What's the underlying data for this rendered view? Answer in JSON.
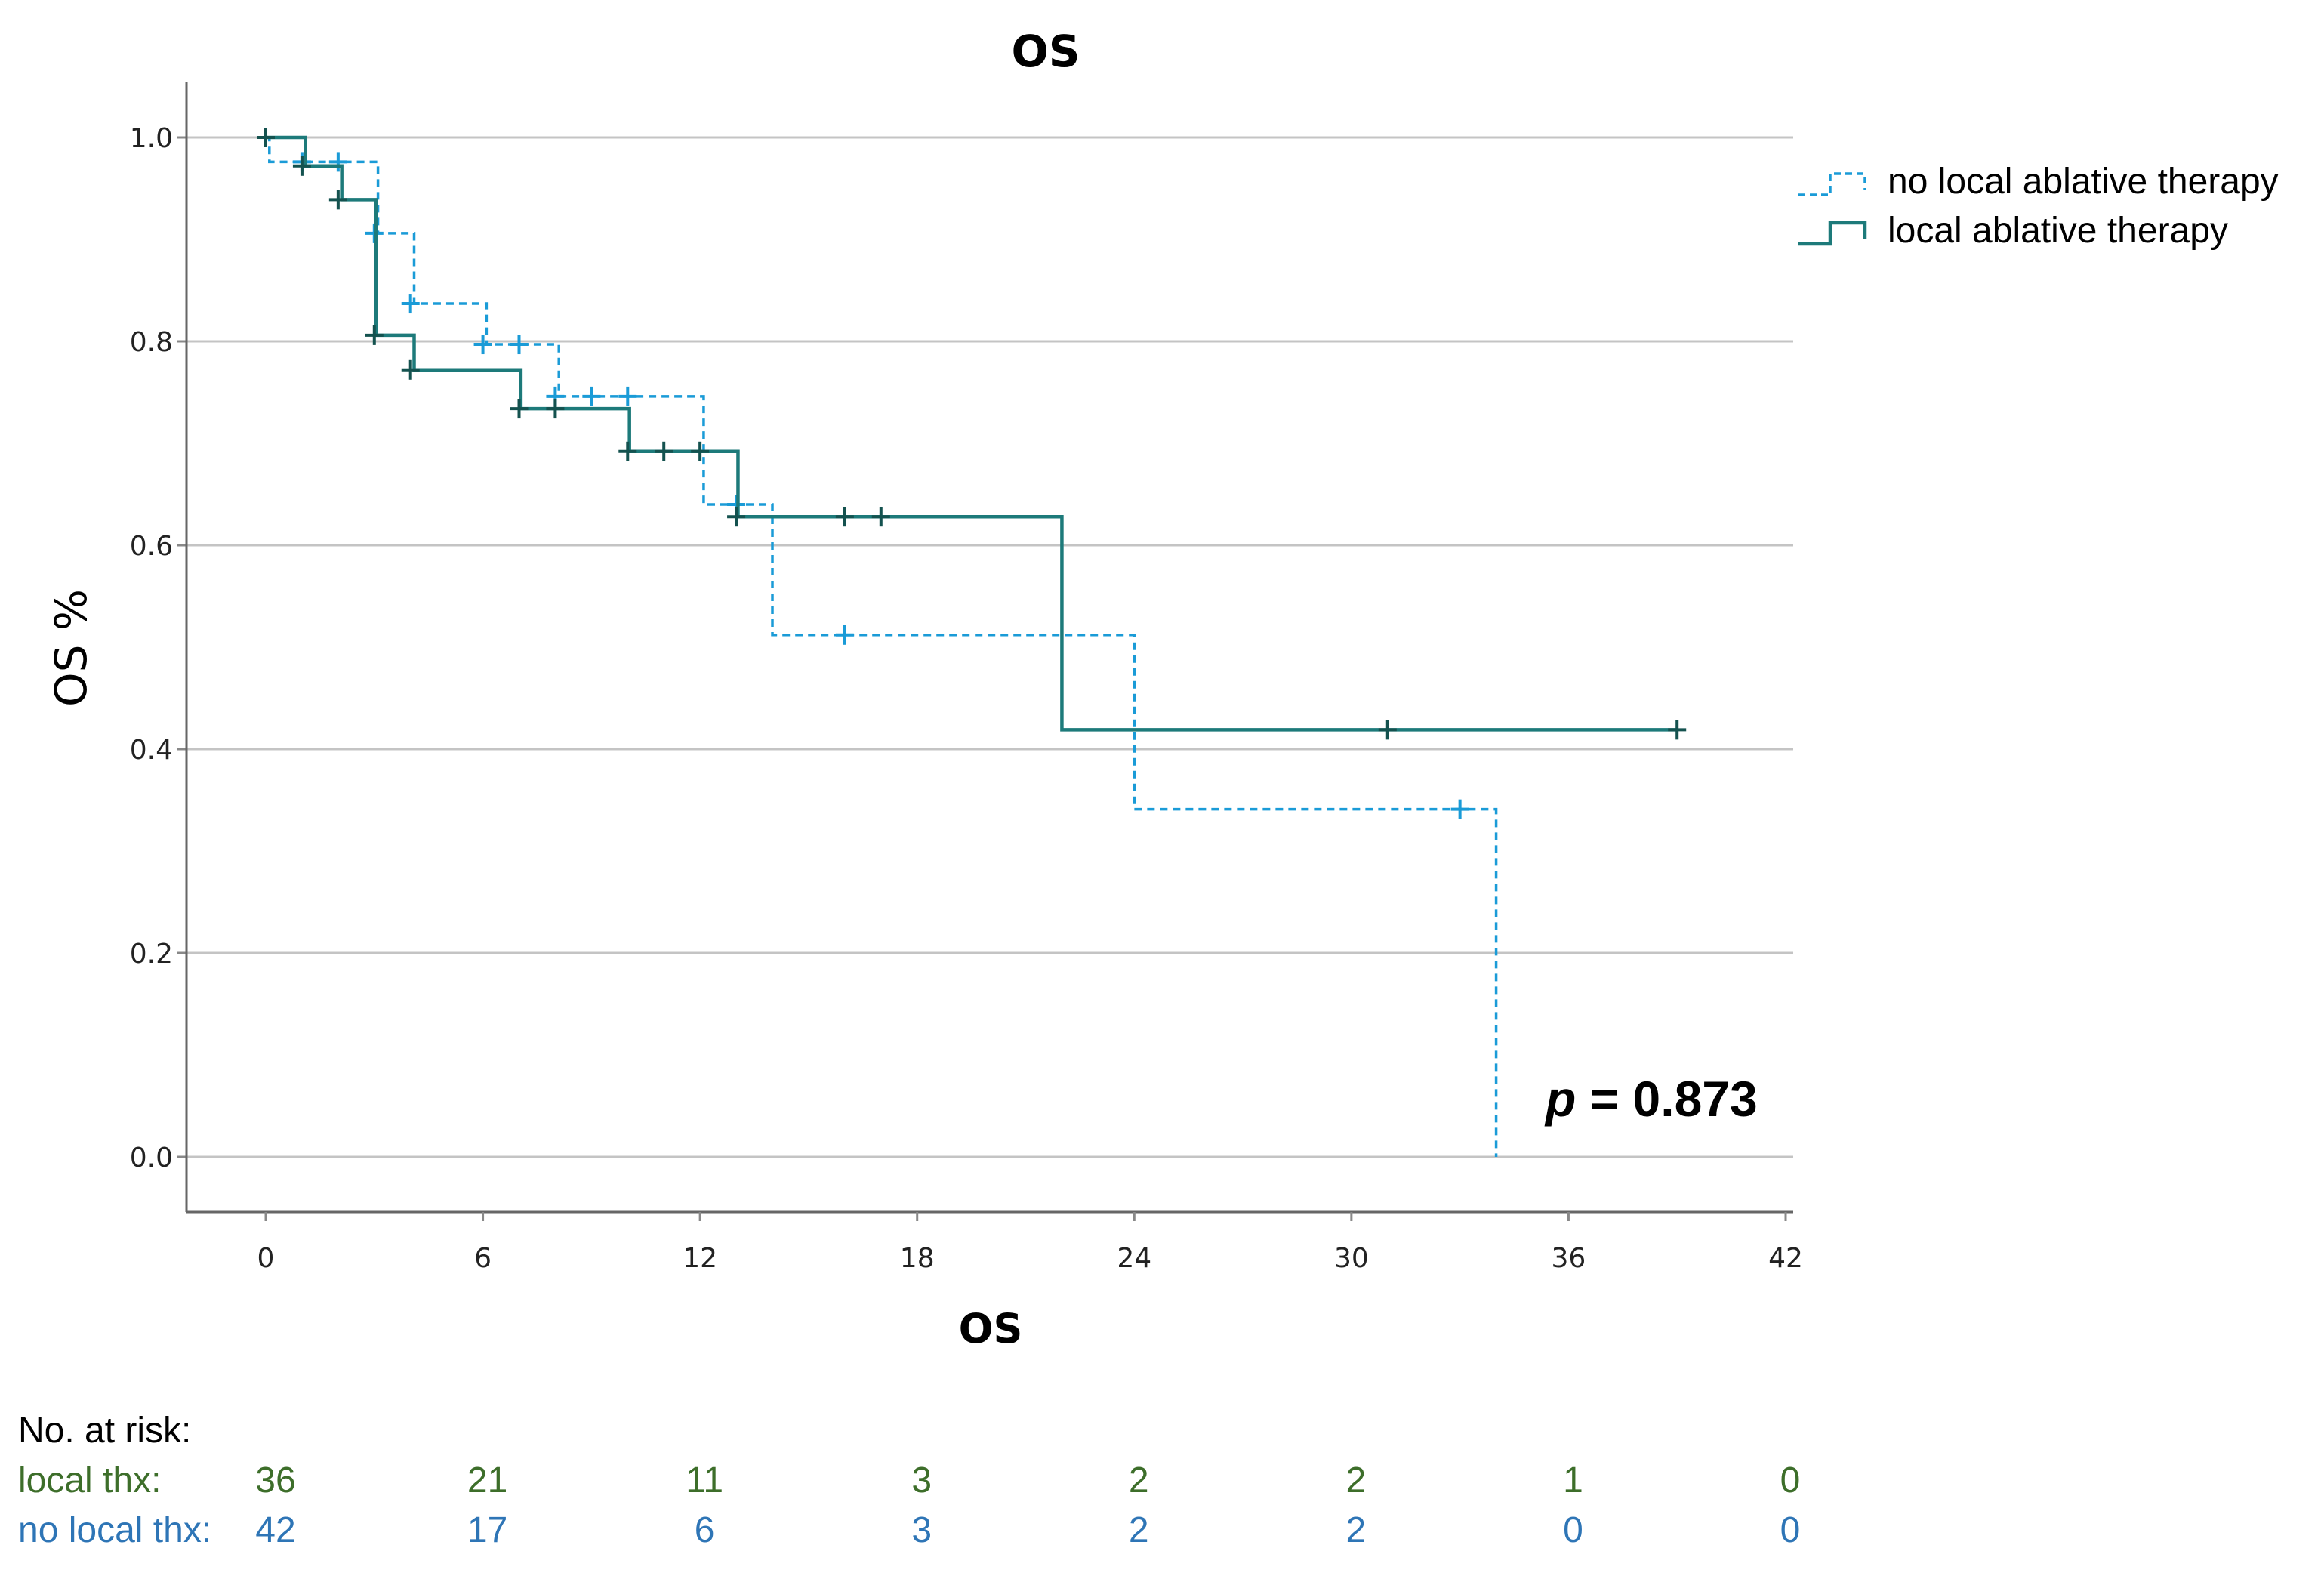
{
  "chart_data": {
    "type": "line",
    "subtype": "kaplan-meier",
    "title": "OS",
    "xlabel": "OS",
    "ylabel": "OS %",
    "xlim": [
      -4.4,
      42
    ],
    "ylim": [
      -0.055,
      1.07
    ],
    "xticks": [
      "0",
      "6",
      "12",
      "18",
      "24",
      "30",
      "36",
      "42"
    ],
    "yticks": [
      "0.0",
      "0.2",
      "0.4",
      "0.6",
      "0.8",
      "1.0"
    ],
    "grid": "horizontal",
    "legend_position": "top-right",
    "annotation": {
      "prefix": "p",
      "text": " = 0.873"
    },
    "series": [
      {
        "name": "no local ablative therapy",
        "color": "#1a9bd7",
        "style": "dashed",
        "steps": [
          [
            0,
            1.0
          ],
          [
            0.1,
            0.976
          ],
          [
            3.1,
            0.906
          ],
          [
            4.1,
            0.837
          ],
          [
            6.1,
            0.797
          ],
          [
            8.1,
            0.746
          ],
          [
            12.1,
            0.64
          ],
          [
            14.0,
            0.512
          ],
          [
            24.0,
            0.341
          ],
          [
            34.0,
            0.0
          ]
        ],
        "end_x": 34.0,
        "censored": [
          [
            0,
            1.0
          ],
          [
            1,
            0.976
          ],
          [
            2,
            0.976
          ],
          [
            3,
            0.906
          ],
          [
            4,
            0.837
          ],
          [
            6,
            0.797
          ],
          [
            7,
            0.797
          ],
          [
            8,
            0.746
          ],
          [
            9,
            0.746
          ],
          [
            10,
            0.746
          ],
          [
            13,
            0.64
          ],
          [
            16,
            0.512
          ],
          [
            33,
            0.341
          ]
        ]
      },
      {
        "name": "local ablative therapy",
        "color": "#1d7a7a",
        "style": "solid",
        "steps": [
          [
            0,
            1.0
          ],
          [
            1.1,
            0.972
          ],
          [
            2.1,
            0.939
          ],
          [
            3.05,
            0.806
          ],
          [
            4.1,
            0.772
          ],
          [
            7.05,
            0.734
          ],
          [
            10.05,
            0.692
          ],
          [
            13.05,
            0.628
          ],
          [
            22.0,
            0.419
          ]
        ],
        "end_x": 39.0,
        "censored": [
          [
            0,
            1.0
          ],
          [
            1,
            0.972
          ],
          [
            2,
            0.939
          ],
          [
            3,
            0.806
          ],
          [
            4,
            0.772
          ],
          [
            7,
            0.734
          ],
          [
            8,
            0.734
          ],
          [
            10,
            0.692
          ],
          [
            11,
            0.692
          ],
          [
            12,
            0.692
          ],
          [
            13,
            0.628
          ],
          [
            16,
            0.628
          ],
          [
            17,
            0.628
          ],
          [
            31,
            0.419
          ],
          [
            39,
            0.419
          ]
        ]
      }
    ],
    "risk_table": {
      "header": "No. at risk:",
      "time_points": [
        0,
        6,
        12,
        18,
        24,
        30,
        36,
        42
      ],
      "rows": [
        {
          "label": "local thx:",
          "color": "#3d6e2a",
          "values": [
            "36",
            "21",
            "11",
            "3",
            "2",
            "2",
            "1",
            "0"
          ]
        },
        {
          "label": "no local thx:",
          "color": "#2e75b6",
          "values": [
            "42",
            "17",
            "6",
            "3",
            "2",
            "2",
            "0",
            "0"
          ]
        }
      ]
    }
  }
}
